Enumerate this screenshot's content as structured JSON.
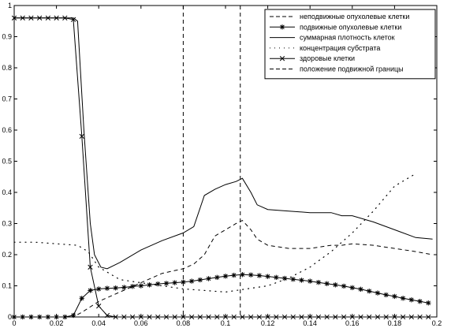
{
  "chart_data": {
    "type": "line",
    "title": "",
    "xlabel": "",
    "ylabel": "",
    "xlim": [
      0,
      0.2
    ],
    "ylim": [
      0,
      1
    ],
    "xticks": [
      0,
      0.02,
      0.04,
      0.06,
      0.08,
      0.1,
      0.12,
      0.14,
      0.16,
      0.18,
      0.2
    ],
    "xtick_labels": [
      "0",
      "0.02",
      "0.04",
      "0.06",
      "0.08",
      "0.1",
      "0.12",
      "0.14",
      "0.16",
      "0.18",
      "0.2"
    ],
    "yticks": [
      0,
      0.1,
      0.2,
      0.3,
      0.4,
      0.5,
      0.6,
      0.7,
      0.8,
      0.9,
      1
    ],
    "ytick_labels": [
      "0",
      "0.1",
      "0.2",
      "0.3",
      "0.4",
      "0.5",
      "0.6",
      "0.7",
      "0.8",
      "0.9",
      "1"
    ],
    "grid": false,
    "legend_position": "top-right",
    "vlines": [
      {
        "x": 0.08
      },
      {
        "x": 0.107
      }
    ],
    "series": [
      {
        "name": "неподвижные опухолевые клетки",
        "style": "dashed",
        "marker": "none",
        "x": [
          0,
          0.028,
          0.032,
          0.04,
          0.05,
          0.06,
          0.07,
          0.08,
          0.085,
          0.09,
          0.095,
          0.1,
          0.105,
          0.108,
          0.112,
          0.115,
          0.12,
          0.13,
          0.14,
          0.15,
          0.155,
          0.16,
          0.17,
          0.18,
          0.19,
          0.198
        ],
        "y": [
          0,
          0,
          0.015,
          0.05,
          0.08,
          0.11,
          0.14,
          0.155,
          0.17,
          0.2,
          0.26,
          0.28,
          0.3,
          0.31,
          0.28,
          0.25,
          0.23,
          0.22,
          0.22,
          0.23,
          0.23,
          0.235,
          0.23,
          0.22,
          0.21,
          0.2
        ]
      },
      {
        "name": "подвижные опухолевые клетки",
        "style": "solid",
        "marker": "asterisk",
        "x": [
          0,
          0.004,
          0.008,
          0.012,
          0.016,
          0.02,
          0.024,
          0.028,
          0.032,
          0.036,
          0.04,
          0.044,
          0.048,
          0.052,
          0.056,
          0.06,
          0.064,
          0.068,
          0.072,
          0.076,
          0.08,
          0.084,
          0.088,
          0.092,
          0.096,
          0.1,
          0.104,
          0.108,
          0.112,
          0.116,
          0.12,
          0.124,
          0.128,
          0.132,
          0.136,
          0.14,
          0.144,
          0.148,
          0.152,
          0.156,
          0.16,
          0.164,
          0.168,
          0.172,
          0.176,
          0.18,
          0.184,
          0.188,
          0.192,
          0.196
        ],
        "y": [
          0,
          0,
          0,
          0,
          0,
          0,
          0,
          0.005,
          0.06,
          0.085,
          0.09,
          0.092,
          0.093,
          0.095,
          0.098,
          0.1,
          0.103,
          0.106,
          0.108,
          0.11,
          0.112,
          0.115,
          0.119,
          0.123,
          0.127,
          0.131,
          0.134,
          0.136,
          0.135,
          0.133,
          0.13,
          0.127,
          0.124,
          0.121,
          0.118,
          0.115,
          0.111,
          0.107,
          0.103,
          0.099,
          0.094,
          0.089,
          0.083,
          0.077,
          0.071,
          0.066,
          0.06,
          0.055,
          0.05,
          0.045
        ]
      },
      {
        "name": "суммарная плотность клеток",
        "style": "solid",
        "marker": "none",
        "x": [
          0,
          0.028,
          0.03,
          0.033,
          0.036,
          0.038,
          0.041,
          0.044,
          0.05,
          0.06,
          0.07,
          0.08,
          0.085,
          0.09,
          0.095,
          0.1,
          0.105,
          0.108,
          0.112,
          0.115,
          0.12,
          0.13,
          0.14,
          0.15,
          0.155,
          0.16,
          0.17,
          0.18,
          0.19,
          0.198
        ],
        "y": [
          0.96,
          0.96,
          0.95,
          0.6,
          0.3,
          0.2,
          0.16,
          0.155,
          0.175,
          0.215,
          0.245,
          0.27,
          0.29,
          0.39,
          0.41,
          0.425,
          0.435,
          0.445,
          0.4,
          0.36,
          0.345,
          0.34,
          0.335,
          0.335,
          0.325,
          0.325,
          0.305,
          0.28,
          0.255,
          0.25
        ]
      },
      {
        "name": "концентрация субстрата",
        "style": "dotted",
        "marker": "none",
        "x": [
          0,
          0.01,
          0.02,
          0.03,
          0.035,
          0.04,
          0.05,
          0.06,
          0.07,
          0.08,
          0.09,
          0.1,
          0.11,
          0.12,
          0.13,
          0.14,
          0.15,
          0.16,
          0.17,
          0.18,
          0.19
        ],
        "y": [
          0.24,
          0.24,
          0.235,
          0.23,
          0.21,
          0.16,
          0.12,
          0.11,
          0.1,
          0.09,
          0.085,
          0.08,
          0.09,
          0.1,
          0.125,
          0.16,
          0.21,
          0.27,
          0.34,
          0.42,
          0.46
        ]
      },
      {
        "name": "здоровые клетки",
        "style": "solid",
        "marker": "x",
        "x": [
          0,
          0.004,
          0.008,
          0.012,
          0.016,
          0.02,
          0.024,
          0.028,
          0.032,
          0.036,
          0.04,
          0.044,
          0.048,
          0.052,
          0.056,
          0.06,
          0.064,
          0.068,
          0.072,
          0.076,
          0.08,
          0.084,
          0.088,
          0.092,
          0.096,
          0.1,
          0.104,
          0.108,
          0.112,
          0.116,
          0.12,
          0.124,
          0.128,
          0.132,
          0.136,
          0.14,
          0.144,
          0.148,
          0.152,
          0.156,
          0.16,
          0.164,
          0.168,
          0.172,
          0.176,
          0.18,
          0.184,
          0.188,
          0.192,
          0.196
        ],
        "y": [
          0.96,
          0.96,
          0.96,
          0.96,
          0.96,
          0.96,
          0.96,
          0.955,
          0.58,
          0.16,
          0.035,
          0.005,
          0,
          0,
          0,
          0,
          0,
          0,
          0,
          0,
          0,
          0,
          0,
          0,
          0,
          0,
          0,
          0,
          0,
          0,
          0,
          0,
          0,
          0,
          0,
          0,
          0,
          0,
          0,
          0,
          0,
          0,
          0,
          0,
          0,
          0,
          0,
          0,
          0,
          0
        ]
      },
      {
        "name": "положение подвижной границы",
        "style": "dashed",
        "marker": "none",
        "x": [],
        "y": []
      }
    ]
  }
}
